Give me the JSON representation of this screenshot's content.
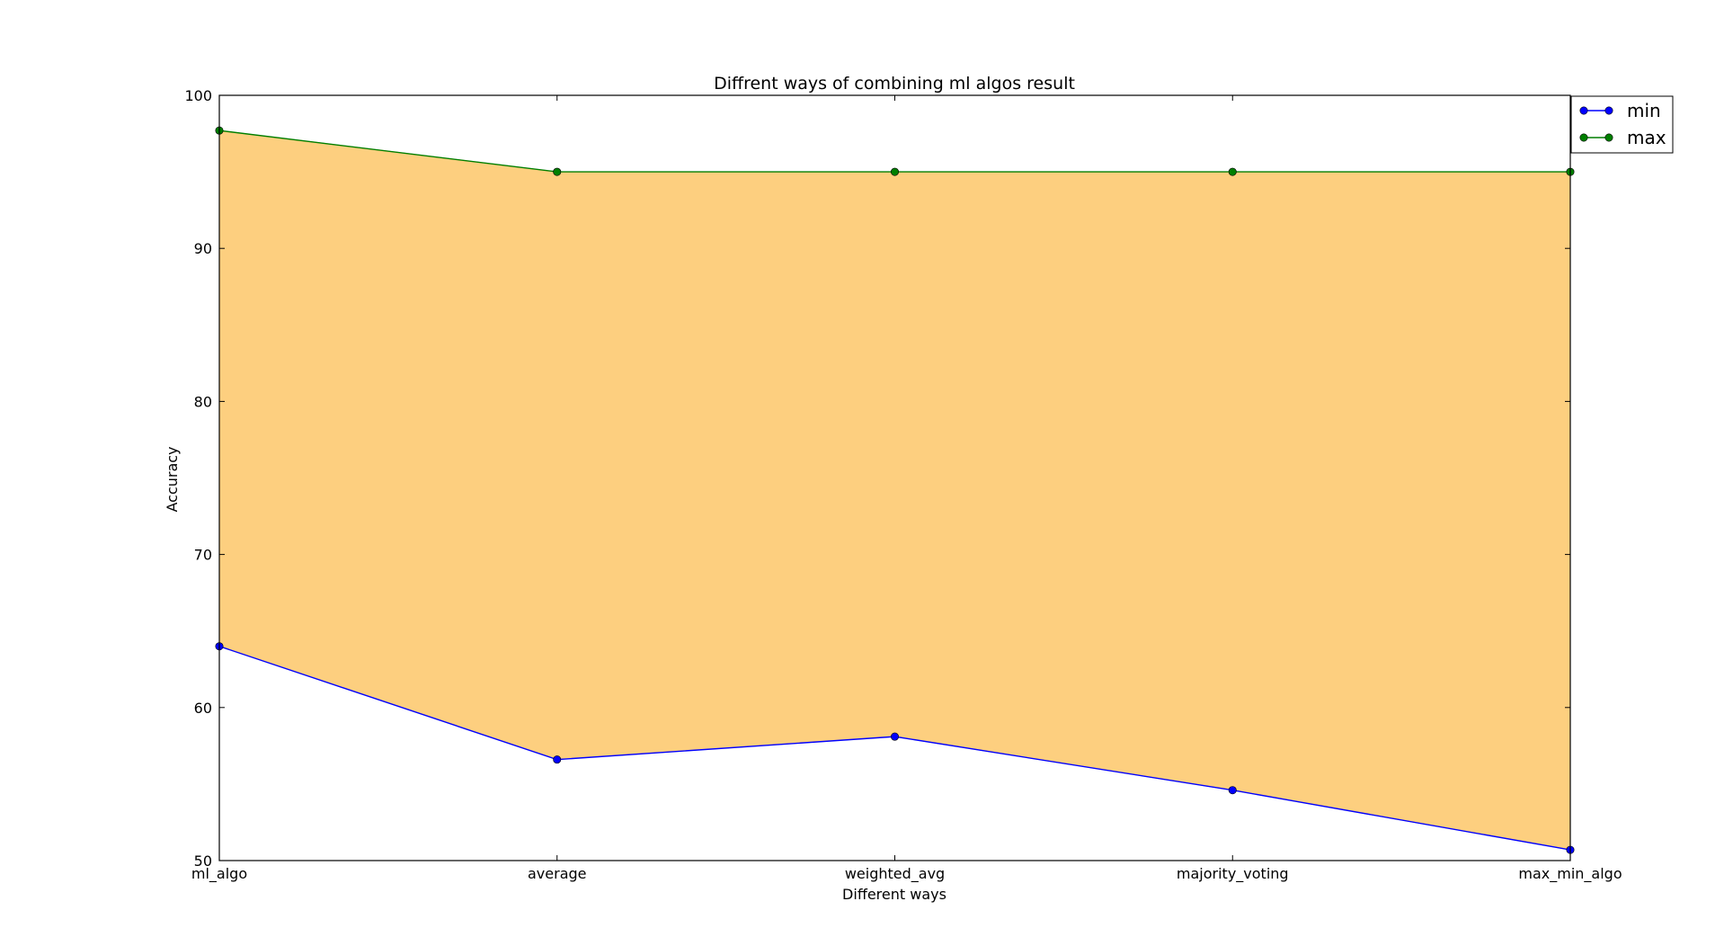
{
  "chart_data": {
    "type": "area",
    "title": "Diffrent ways of combining ml algos result",
    "xlabel": "Different ways",
    "ylabel": "Accuracy",
    "categories": [
      "ml_algo",
      "average",
      "weighted_avg",
      "majority_voting",
      "max_min_algo"
    ],
    "ylim": [
      50,
      100
    ],
    "yticks": [
      50,
      60,
      70,
      80,
      90,
      100
    ],
    "grid": false,
    "legend": "top-right",
    "fill_between": "min and max",
    "series": [
      {
        "name": "min",
        "values": [
          64.0,
          56.6,
          58.1,
          54.6,
          50.7
        ]
      },
      {
        "name": "max",
        "values": [
          97.7,
          95.0,
          95.0,
          95.0,
          95.0
        ]
      }
    ],
    "colors": {
      "min": "#0000ff",
      "max": "#007f00",
      "fill": "#fdcf7f",
      "frame": "#000000"
    }
  }
}
